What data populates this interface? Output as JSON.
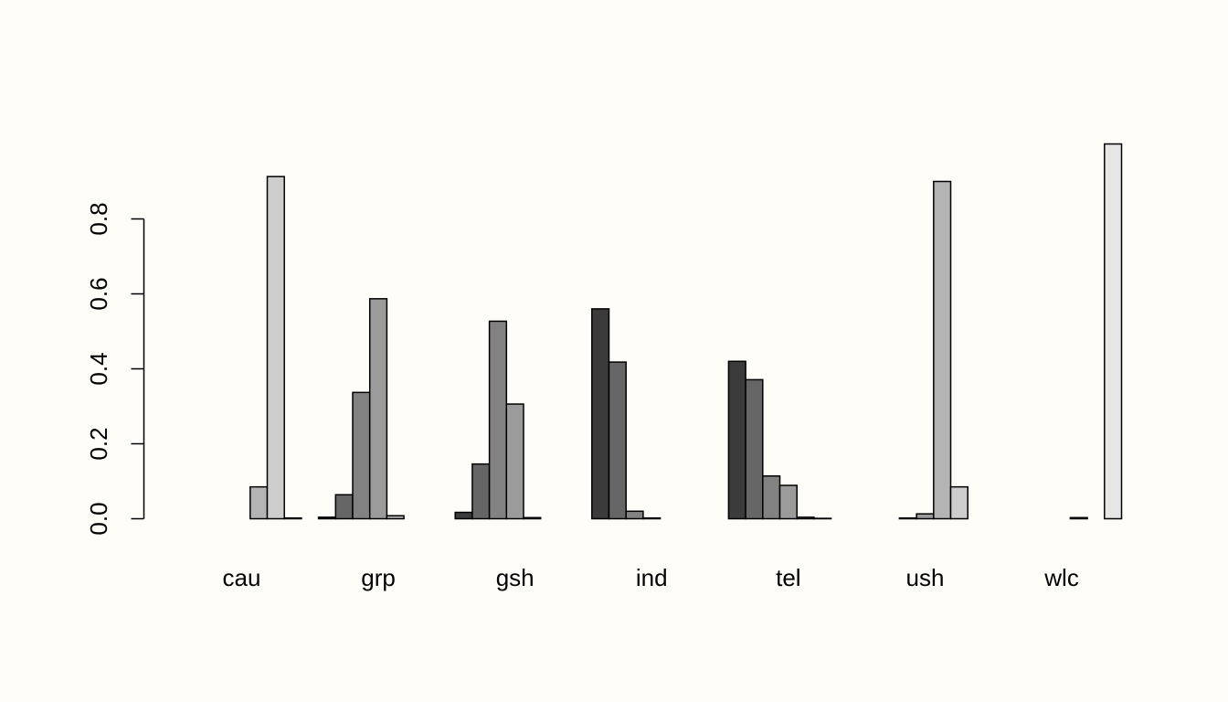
{
  "chart_data": {
    "type": "bar",
    "mode": "grouped",
    "categories": [
      "cau",
      "grp",
      "gsh",
      "ind",
      "tel",
      "ush",
      "wlc"
    ],
    "series": [
      {
        "color": "#3b3b3b",
        "values": [
          0.0,
          0.004,
          0.017,
          0.56,
          0.42,
          0.0,
          0.0
        ]
      },
      {
        "color": "#666666",
        "values": [
          0.0,
          0.064,
          0.146,
          0.418,
          0.371,
          0.0,
          0.0
        ]
      },
      {
        "color": "#828282",
        "values": [
          0.0,
          0.337,
          0.527,
          0.02,
          0.114,
          0.002,
          0.0
        ]
      },
      {
        "color": "#9b9b9b",
        "values": [
          0.0,
          0.587,
          0.306,
          0.002,
          0.089,
          0.013,
          0.0
        ]
      },
      {
        "color": "#b4b4b4",
        "values": [
          0.085,
          0.008,
          0.003,
          0.0,
          0.004,
          0.9,
          0.003
        ]
      },
      {
        "color": "#cdcdcd",
        "values": [
          0.913,
          0.0,
          0.0,
          0.0,
          0.001,
          0.085,
          0.0
        ]
      },
      {
        "color": "#e6e6e6",
        "values": [
          0.002,
          0.0,
          0.0,
          0.0,
          0.0,
          0.0,
          1.0
        ]
      }
    ],
    "ylim": [
      0,
      1
    ],
    "yticks": [
      0.0,
      0.2,
      0.4,
      0.6,
      0.8
    ],
    "ytick_labels": [
      "0.0",
      "0.2",
      "0.4",
      "0.6",
      "0.8"
    ],
    "title": "",
    "xlabel": "",
    "ylabel": "",
    "grid": false,
    "legend": "none"
  }
}
